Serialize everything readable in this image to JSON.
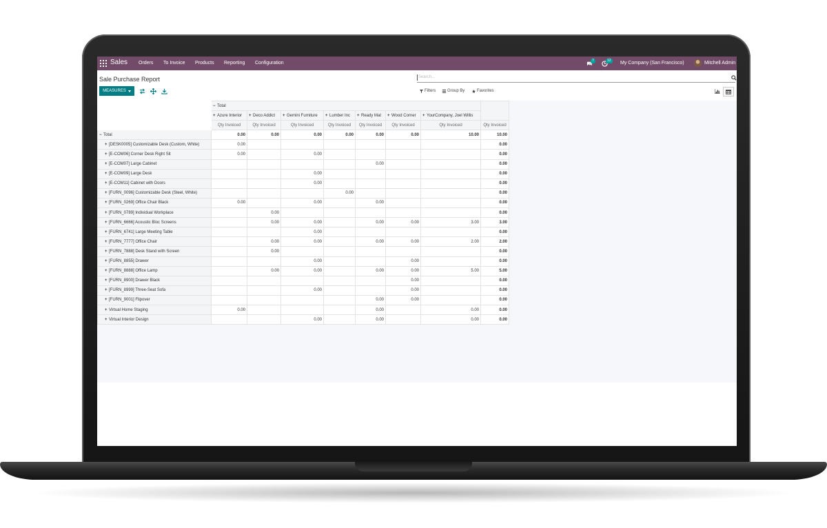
{
  "navbar": {
    "app_name": "Sales",
    "menu": [
      "Orders",
      "To Invoice",
      "Products",
      "Reporting",
      "Configuration"
    ],
    "messages_count": "7",
    "activities_count": "12",
    "company": "My Company (San Francisco)",
    "user": "Mitchell Admin",
    "bg_color": "#714b67"
  },
  "page": {
    "title": "Sale Purchase Report",
    "search_placeholder": "Search...",
    "measures_label": "MEASURES",
    "filters_label": "Filters",
    "groupby_label": "Group By",
    "favorites_label": "Favorites",
    "accent_color": "#017e84"
  },
  "pivot": {
    "col_total_label": "Total",
    "columns": [
      "Azure Interior",
      "Deco Addict",
      "Gemini Furniture",
      "Lumber Inc",
      "Ready Mat",
      "Wood Corner",
      "YourCompany, Joel Willis"
    ],
    "measure_label": "Qty Invoiced",
    "total_row": {
      "label": "Total",
      "values": [
        "0.00",
        "0.00",
        "0.00",
        "0.00",
        "0.00",
        "0.00",
        "10.00"
      ],
      "total": "10.00"
    },
    "rows": [
      {
        "label": "[DESK0005] Customizable Desk (Custom, White)",
        "values": [
          "0.00",
          "",
          "",
          "",
          "",
          "",
          ""
        ],
        "total": "0.00"
      },
      {
        "label": "[E-COM06] Corner Desk Right Sit",
        "values": [
          "0.00",
          "",
          "0.00",
          "",
          "",
          "",
          ""
        ],
        "total": "0.00"
      },
      {
        "label": "[E-COM07] Large Cabinet",
        "values": [
          "",
          "",
          "",
          "",
          "0.00",
          "",
          ""
        ],
        "total": "0.00"
      },
      {
        "label": "[E-COM09] Large Desk",
        "values": [
          "",
          "",
          "0.00",
          "",
          "",
          "",
          ""
        ],
        "total": "0.00"
      },
      {
        "label": "[E-COM11] Cabinet with Doors",
        "values": [
          "",
          "",
          "0.00",
          "",
          "",
          "",
          ""
        ],
        "total": "0.00"
      },
      {
        "label": "[FURN_0096] Customizable Desk (Steel, White)",
        "values": [
          "",
          "",
          "",
          "0.00",
          "",
          "",
          ""
        ],
        "total": "0.00"
      },
      {
        "label": "[FURN_0269] Office Chair Black",
        "values": [
          "0.00",
          "",
          "0.00",
          "",
          "0.00",
          "",
          ""
        ],
        "total": "0.00"
      },
      {
        "label": "[FURN_0789] Individual Workplace",
        "values": [
          "",
          "0.00",
          "",
          "",
          "",
          "",
          ""
        ],
        "total": "0.00"
      },
      {
        "label": "[FURN_6666] Acoustic Bloc Screens",
        "values": [
          "",
          "0.00",
          "0.00",
          "",
          "0.00",
          "0.00",
          "3.00"
        ],
        "total": "3.00"
      },
      {
        "label": "[FURN_6741] Large Meeting Table",
        "values": [
          "",
          "",
          "0.00",
          "",
          "",
          "",
          ""
        ],
        "total": "0.00"
      },
      {
        "label": "[FURN_7777] Office Chair",
        "values": [
          "",
          "0.00",
          "0.00",
          "",
          "0.00",
          "0.00",
          "2.00"
        ],
        "total": "2.00"
      },
      {
        "label": "[FURN_7888] Desk Stand with Screen",
        "values": [
          "",
          "0.00",
          "",
          "",
          "",
          "",
          ""
        ],
        "total": "0.00"
      },
      {
        "label": "[FURN_8855] Drawer",
        "values": [
          "",
          "",
          "0.00",
          "",
          "",
          "0.00",
          ""
        ],
        "total": "0.00"
      },
      {
        "label": "[FURN_8888] Office Lamp",
        "values": [
          "",
          "0.00",
          "0.00",
          "",
          "0.00",
          "0.00",
          "5.00"
        ],
        "total": "5.00"
      },
      {
        "label": "[FURN_8900] Drawer Black",
        "values": [
          "",
          "",
          "",
          "",
          "",
          "0.00",
          ""
        ],
        "total": "0.00"
      },
      {
        "label": "[FURN_8999] Three-Seat Sofa",
        "values": [
          "",
          "",
          "0.00",
          "",
          "",
          "0.00",
          ""
        ],
        "total": "0.00"
      },
      {
        "label": "[FURN_9001] Flipover",
        "values": [
          "",
          "",
          "",
          "",
          "0.00",
          "0.00",
          ""
        ],
        "total": "0.00"
      },
      {
        "label": "Virtual Home Staging",
        "values": [
          "0.00",
          "",
          "",
          "",
          "0.00",
          "",
          "0.00"
        ],
        "total": "0.00"
      },
      {
        "label": "Virtual Interior Design",
        "values": [
          "",
          "",
          "0.00",
          "",
          "0.00",
          "",
          "0.00"
        ],
        "total": "0.00"
      }
    ]
  }
}
